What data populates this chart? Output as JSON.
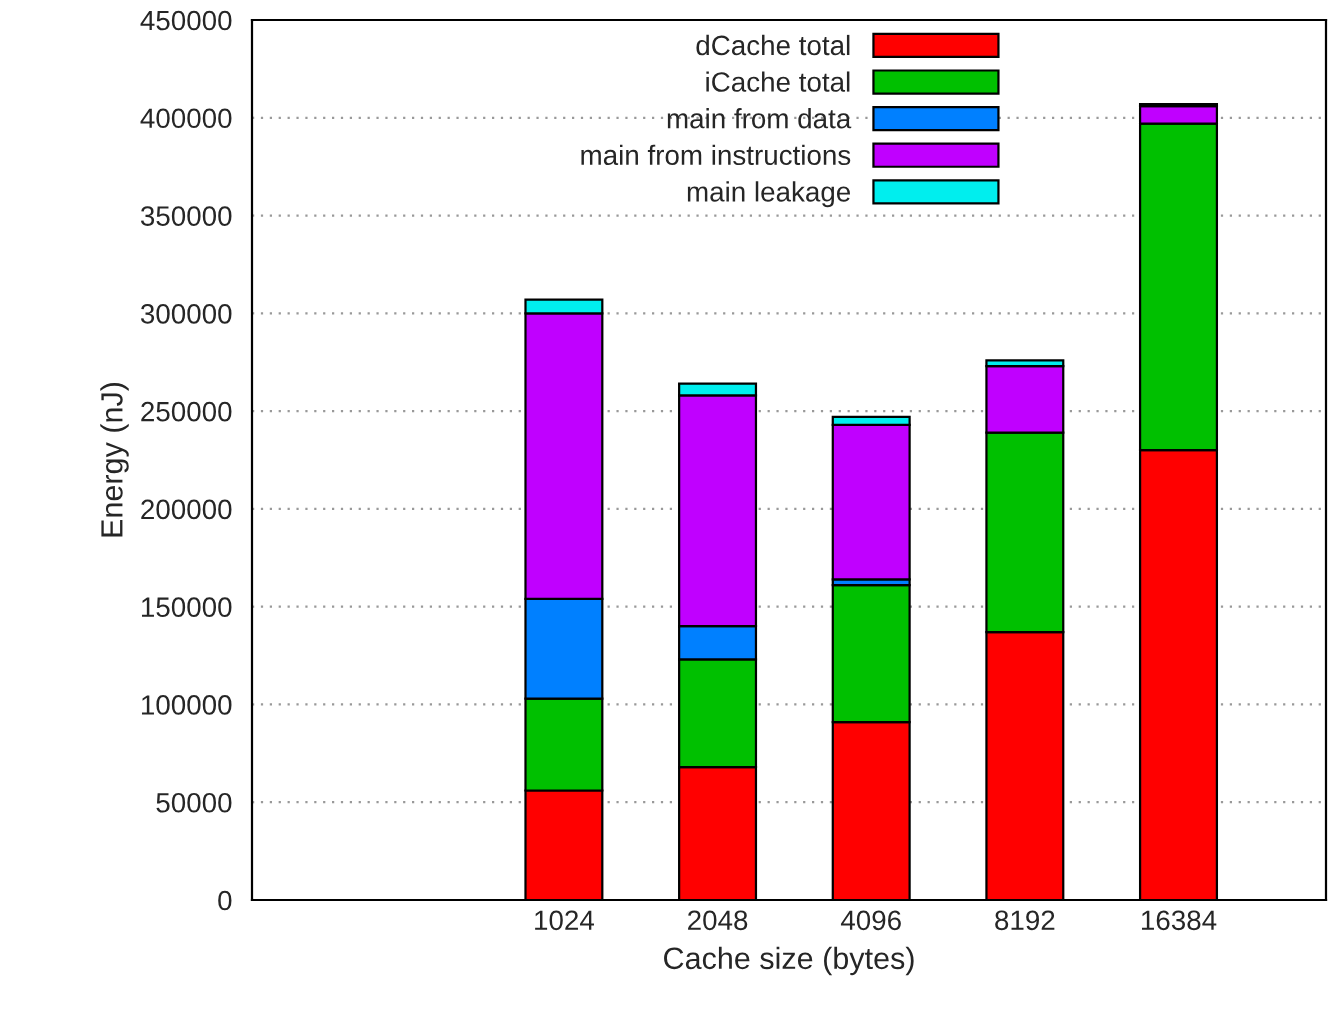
{
  "chart_data": {
    "type": "bar",
    "stacked": true,
    "xlabel": "Cache size (bytes)",
    "ylabel": "Energy (nJ)",
    "categories": [
      null,
      null,
      "1024",
      "2048",
      "4096",
      "8192",
      "16384"
    ],
    "series": [
      {
        "name": "dCache total",
        "color": "#ff0000",
        "values": [
          null,
          null,
          56000,
          68000,
          91000,
          137000,
          230000
        ]
      },
      {
        "name": "iCache total",
        "color": "#00c000",
        "values": [
          null,
          null,
          47000,
          55000,
          70000,
          102000,
          167000
        ]
      },
      {
        "name": "main from data",
        "color": "#0080ff",
        "values": [
          null,
          null,
          51000,
          17000,
          3000,
          null,
          null
        ]
      },
      {
        "name": "main from instructions",
        "color": "#c000ff",
        "values": [
          null,
          null,
          146000,
          118000,
          79000,
          34000,
          9000
        ]
      },
      {
        "name": "main leakage",
        "color": "#00eeee",
        "values": [
          null,
          null,
          7000,
          6000,
          4000,
          3000,
          1000
        ]
      }
    ],
    "ylim": [
      0,
      450000
    ],
    "yticks": [
      0,
      50000,
      100000,
      150000,
      200000,
      250000,
      300000,
      350000,
      400000,
      450000
    ],
    "grid": "y",
    "legend": "top"
  }
}
